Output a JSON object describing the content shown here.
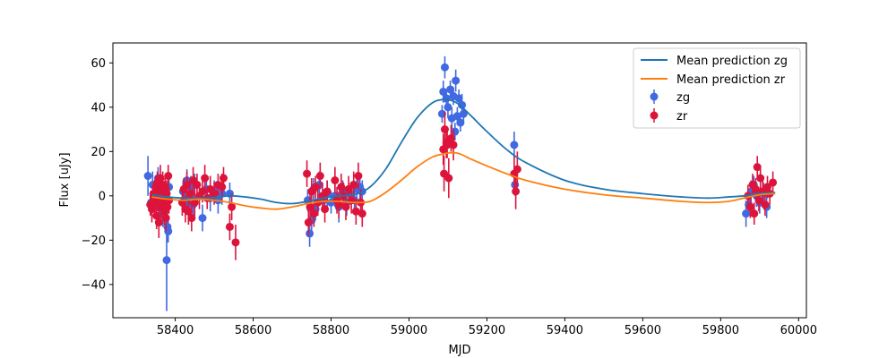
{
  "chart_data": {
    "type": "scatter",
    "title": "",
    "xlabel": "MJD",
    "ylabel": "Flux [uJy]",
    "xlim": [
      58240,
      60020
    ],
    "ylim": [
      -55,
      69
    ],
    "xticks": [
      58400,
      58600,
      58800,
      59000,
      59200,
      59400,
      59600,
      59800,
      60000
    ],
    "yticks": [
      -40,
      -20,
      0,
      20,
      40,
      60
    ],
    "grid": false,
    "legend_placement": "top-right",
    "colors": {
      "zg": "#4169e1",
      "zr": "#dc143c",
      "pred_zg": "#1f77b4",
      "pred_zr": "#ff7f0e"
    },
    "lines": [
      {
        "name": "Mean prediction zg",
        "color": "#1f77b4",
        "x": [
          58340,
          58380,
          58420,
          58460,
          58500,
          58540,
          58580,
          58620,
          58660,
          58700,
          58740,
          58780,
          58820,
          58860,
          58900,
          58940,
          58980,
          59020,
          59060,
          59090,
          59110,
          59130,
          59160,
          59200,
          59250,
          59300,
          59400,
          59500,
          59600,
          59700,
          59770,
          59820,
          59860,
          59900,
          59940
        ],
        "y": [
          0.5,
          -0.5,
          -1,
          -1,
          -0.8,
          0,
          -0.5,
          -1.5,
          -3,
          -3.5,
          -2.5,
          -1,
          0,
          0.5,
          4,
          12,
          24,
          35,
          42,
          43.5,
          43,
          41,
          36,
          29,
          21,
          15,
          7,
          3,
          1,
          -0.5,
          -1,
          -0.5,
          0,
          1,
          1.5
        ]
      },
      {
        "name": "Mean prediction zr",
        "color": "#ff7f0e",
        "x": [
          58340,
          58380,
          58420,
          58460,
          58500,
          58540,
          58580,
          58620,
          58660,
          58700,
          58740,
          58780,
          58820,
          58860,
          58900,
          58940,
          58980,
          59020,
          59060,
          59090,
          59110,
          59130,
          59160,
          59200,
          59250,
          59300,
          59400,
          59500,
          59600,
          59700,
          59770,
          59820,
          59860,
          59900,
          59940
        ],
        "y": [
          -0.5,
          -1.5,
          -2,
          -1.5,
          -2,
          -3,
          -4.5,
          -5.5,
          -6,
          -5,
          -3.5,
          -2.5,
          -2.5,
          -3,
          -2.5,
          1.5,
          7,
          13,
          17.5,
          19,
          19.5,
          19,
          16.5,
          13.5,
          10,
          7,
          3,
          0.5,
          -1,
          -2.5,
          -3,
          -2.5,
          -1,
          0.5,
          1
        ]
      }
    ],
    "series": [
      {
        "name": "zg",
        "color": "#4169e1",
        "points": [
          [
            58330,
            9,
            9
          ],
          [
            58338,
            -3,
            5
          ],
          [
            58342,
            5,
            6
          ],
          [
            58348,
            -2,
            5
          ],
          [
            58352,
            3,
            4
          ],
          [
            58356,
            8,
            5
          ],
          [
            58360,
            -5,
            6
          ],
          [
            58364,
            2,
            5
          ],
          [
            58368,
            -8,
            6
          ],
          [
            58372,
            0,
            5
          ],
          [
            58376,
            -3,
            6
          ],
          [
            58378,
            -29,
            23
          ],
          [
            58380,
            -14,
            7
          ],
          [
            58382,
            -16,
            5
          ],
          [
            58384,
            4,
            6
          ],
          [
            58420,
            2,
            5
          ],
          [
            58426,
            -3,
            6
          ],
          [
            58430,
            7,
            5
          ],
          [
            58436,
            0,
            6
          ],
          [
            58440,
            4,
            5
          ],
          [
            58446,
            -4,
            6
          ],
          [
            58450,
            5,
            5
          ],
          [
            58470,
            -10,
            6
          ],
          [
            58480,
            3,
            5
          ],
          [
            58490,
            -1,
            6
          ],
          [
            58500,
            2,
            5
          ],
          [
            58510,
            -2,
            6
          ],
          [
            58520,
            1,
            5
          ],
          [
            58540,
            1,
            5
          ],
          [
            58740,
            -2,
            5
          ],
          [
            58745,
            -17,
            6
          ],
          [
            58750,
            -11,
            6
          ],
          [
            58755,
            3,
            5
          ],
          [
            58760,
            -6,
            5
          ],
          [
            58770,
            5,
            6
          ],
          [
            58780,
            -2,
            5
          ],
          [
            58790,
            1,
            6
          ],
          [
            58800,
            -3,
            5
          ],
          [
            58810,
            0,
            5
          ],
          [
            58820,
            -5,
            7
          ],
          [
            58830,
            2,
            5
          ],
          [
            58840,
            -3,
            6
          ],
          [
            58850,
            1,
            5
          ],
          [
            58860,
            -2,
            6
          ],
          [
            58866,
            3,
            5
          ],
          [
            58874,
            4,
            6
          ],
          [
            58880,
            2,
            5
          ],
          [
            59085,
            37,
            4
          ],
          [
            59088,
            47,
            5
          ],
          [
            59092,
            58,
            5
          ],
          [
            59096,
            44,
            4
          ],
          [
            59100,
            40,
            5
          ],
          [
            59106,
            48,
            4
          ],
          [
            59110,
            35,
            5
          ],
          [
            59114,
            45,
            4
          ],
          [
            59118,
            29,
            4
          ],
          [
            59120,
            52,
            5
          ],
          [
            59124,
            36,
            4
          ],
          [
            59128,
            44,
            4
          ],
          [
            59132,
            33,
            4
          ],
          [
            59136,
            41,
            5
          ],
          [
            59140,
            37,
            4
          ],
          [
            59270,
            23,
            6
          ],
          [
            59272,
            5,
            5
          ],
          [
            59865,
            -8,
            6
          ],
          [
            59872,
            -4,
            5
          ],
          [
            59878,
            2,
            5
          ],
          [
            59885,
            5,
            4
          ],
          [
            59892,
            0,
            5
          ],
          [
            59900,
            -3,
            5
          ],
          [
            59910,
            1,
            5
          ],
          [
            59918,
            -5,
            5
          ]
        ]
      },
      {
        "name": "zr",
        "color": "#dc143c",
        "points": [
          [
            58336,
            -4,
            5
          ],
          [
            58340,
            -6,
            6
          ],
          [
            58344,
            1,
            5
          ],
          [
            58348,
            -3,
            6
          ],
          [
            58350,
            4,
            5
          ],
          [
            58352,
            -9,
            6
          ],
          [
            58354,
            6,
            5
          ],
          [
            58356,
            -1,
            6
          ],
          [
            58358,
            -12,
            7
          ],
          [
            58360,
            2,
            6
          ],
          [
            58362,
            8,
            6
          ],
          [
            58364,
            -5,
            6
          ],
          [
            58366,
            0,
            5
          ],
          [
            58368,
            5,
            6
          ],
          [
            58370,
            -3,
            6
          ],
          [
            58372,
            -7,
            6
          ],
          [
            58374,
            3,
            5
          ],
          [
            58376,
            -10,
            6
          ],
          [
            58378,
            1,
            6
          ],
          [
            58380,
            -5,
            6
          ],
          [
            58382,
            9,
            5
          ],
          [
            58384,
            -2,
            6
          ],
          [
            58418,
            -3,
            6
          ],
          [
            58422,
            3,
            5
          ],
          [
            58426,
            -6,
            6
          ],
          [
            58430,
            5,
            6
          ],
          [
            58434,
            -7,
            6
          ],
          [
            58438,
            1,
            5
          ],
          [
            58442,
            -10,
            6
          ],
          [
            58446,
            7,
            6
          ],
          [
            58450,
            -3,
            6
          ],
          [
            58456,
            5,
            5
          ],
          [
            58462,
            0,
            6
          ],
          [
            58470,
            2,
            5
          ],
          [
            58476,
            8,
            6
          ],
          [
            58482,
            -1,
            5
          ],
          [
            58490,
            3,
            6
          ],
          [
            58500,
            1,
            5
          ],
          [
            58510,
            5,
            5
          ],
          [
            58520,
            4,
            6
          ],
          [
            58524,
            8,
            5
          ],
          [
            58540,
            -14,
            6
          ],
          [
            58545,
            -5,
            6
          ],
          [
            58555,
            -21,
            8
          ],
          [
            58738,
            10,
            6
          ],
          [
            58742,
            -12,
            6
          ],
          [
            58746,
            -5,
            6
          ],
          [
            58750,
            2,
            6
          ],
          [
            58756,
            -8,
            6
          ],
          [
            58760,
            4,
            5
          ],
          [
            58766,
            -3,
            6
          ],
          [
            58772,
            9,
            6
          ],
          [
            58778,
            0,
            6
          ],
          [
            58784,
            -6,
            6
          ],
          [
            58790,
            2,
            5
          ],
          [
            58810,
            7,
            6
          ],
          [
            58815,
            -2,
            6
          ],
          [
            58820,
            -4,
            6
          ],
          [
            58826,
            4,
            6
          ],
          [
            58832,
            0,
            6
          ],
          [
            58838,
            -5,
            6
          ],
          [
            58845,
            3,
            6
          ],
          [
            58852,
            -2,
            6
          ],
          [
            58858,
            5,
            6
          ],
          [
            58864,
            -7,
            6
          ],
          [
            58870,
            9,
            6
          ],
          [
            58876,
            -3,
            6
          ],
          [
            58880,
            -8,
            6
          ],
          [
            59088,
            21,
            7
          ],
          [
            59090,
            10,
            8
          ],
          [
            59092,
            30,
            8
          ],
          [
            59096,
            24,
            7
          ],
          [
            59098,
            23,
            6
          ],
          [
            59102,
            8,
            9
          ],
          [
            59108,
            26,
            6
          ],
          [
            59114,
            23,
            7
          ],
          [
            59270,
            10,
            8
          ],
          [
            59274,
            2,
            8
          ],
          [
            59278,
            12,
            8
          ],
          [
            59870,
            0,
            5
          ],
          [
            59876,
            -5,
            5
          ],
          [
            59882,
            5,
            5
          ],
          [
            59886,
            -8,
            5
          ],
          [
            59890,
            3,
            5
          ],
          [
            59894,
            13,
            5
          ],
          [
            59898,
            -2,
            5
          ],
          [
            59902,
            8,
            5
          ],
          [
            59908,
            2,
            5
          ],
          [
            59914,
            -4,
            5
          ],
          [
            59920,
            4,
            5
          ],
          [
            59926,
            1,
            5
          ],
          [
            59934,
            6,
            5
          ]
        ]
      }
    ]
  }
}
